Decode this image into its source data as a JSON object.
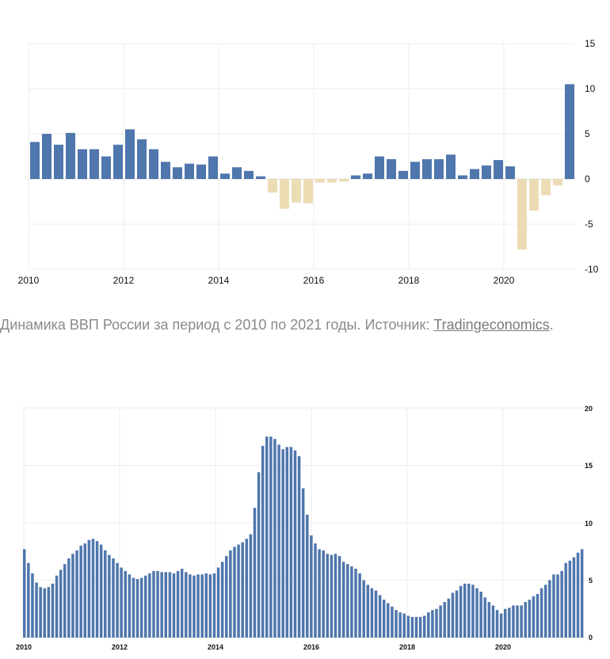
{
  "chart_data": [
    {
      "type": "bar",
      "title": "",
      "xlabel": "",
      "ylabel": "",
      "ylim": [
        -10,
        15
      ],
      "yticks": [
        "15",
        "10",
        "5",
        "0",
        "-5",
        "-10"
      ],
      "xtick_labels": [
        "2010",
        "2012",
        "2014",
        "2016",
        "2018",
        "2020"
      ],
      "positive_color": "#4f76ad",
      "negative_color": "#ecdcb3",
      "categories": [
        "2010 Q1",
        "2010 Q2",
        "2010 Q3",
        "2010 Q4",
        "2011 Q1",
        "2011 Q2",
        "2011 Q3",
        "2011 Q4",
        "2012 Q1",
        "2012 Q2",
        "2012 Q3",
        "2012 Q4",
        "2013 Q1",
        "2013 Q2",
        "2013 Q3",
        "2013 Q4",
        "2014 Q1",
        "2014 Q2",
        "2014 Q3",
        "2014 Q4",
        "2015 Q1",
        "2015 Q2",
        "2015 Q3",
        "2015 Q4",
        "2016 Q1",
        "2016 Q2",
        "2016 Q3",
        "2016 Q4",
        "2017 Q1",
        "2017 Q2",
        "2017 Q3",
        "2017 Q4",
        "2018 Q1",
        "2018 Q2",
        "2018 Q3",
        "2018 Q4",
        "2019 Q1",
        "2019 Q2",
        "2019 Q3",
        "2019 Q4",
        "2020 Q1",
        "2020 Q2",
        "2020 Q3",
        "2020 Q4",
        "2021 Q1",
        "2021 Q2"
      ],
      "values": [
        4.1,
        5.0,
        3.8,
        5.1,
        3.3,
        3.3,
        2.5,
        3.8,
        5.5,
        4.4,
        3.3,
        1.9,
        1.3,
        1.7,
        1.6,
        2.5,
        0.6,
        1.3,
        0.9,
        0.3,
        -1.5,
        -3.3,
        -2.6,
        -2.7,
        -0.4,
        -0.4,
        -0.3,
        0.4,
        0.6,
        2.5,
        2.2,
        0.9,
        1.9,
        2.2,
        2.2,
        2.7,
        0.4,
        1.1,
        1.5,
        2.1,
        1.4,
        -7.8,
        -3.5,
        -1.8,
        -0.7,
        10.5
      ]
    },
    {
      "type": "bar",
      "title": "",
      "xlabel": "",
      "ylabel": "",
      "ylim": [
        0,
        20
      ],
      "yticks": [
        "20",
        "15",
        "10",
        "5",
        "0"
      ],
      "xtick_labels": [
        "2010",
        "2012",
        "2014",
        "2016",
        "2018",
        "2020"
      ],
      "color": "#4f76ad",
      "start": "2010-01",
      "frequency": "monthly",
      "values": [
        7.7,
        6.5,
        5.6,
        4.8,
        4.4,
        4.3,
        4.4,
        4.7,
        5.4,
        5.9,
        6.4,
        6.9,
        7.3,
        7.6,
        8.0,
        8.2,
        8.5,
        8.6,
        8.4,
        8.1,
        7.6,
        7.2,
        6.9,
        6.5,
        6.1,
        5.8,
        5.5,
        5.2,
        5.1,
        5.2,
        5.4,
        5.6,
        5.8,
        5.8,
        5.7,
        5.7,
        5.7,
        5.6,
        5.8,
        6.0,
        5.7,
        5.5,
        5.4,
        5.5,
        5.5,
        5.6,
        5.5,
        5.6,
        6.1,
        6.6,
        7.1,
        7.6,
        7.9,
        8.1,
        8.3,
        8.6,
        9.0,
        11.3,
        14.4,
        16.7,
        17.5,
        17.5,
        17.3,
        16.8,
        16.4,
        16.6,
        16.6,
        16.3,
        15.8,
        13.0,
        10.7,
        8.9,
        8.2,
        7.7,
        7.6,
        7.3,
        7.2,
        7.3,
        7.1,
        6.6,
        6.4,
        6.2,
        6.0,
        5.6,
        5.0,
        4.6,
        4.3,
        4.1,
        3.7,
        3.3,
        3.0,
        2.7,
        2.4,
        2.2,
        2.1,
        1.9,
        1.8,
        1.8,
        1.8,
        1.9,
        2.2,
        2.4,
        2.5,
        2.8,
        3.1,
        3.4,
        3.9,
        4.1,
        4.5,
        4.7,
        4.7,
        4.6,
        4.3,
        4.0,
        3.5,
        3.1,
        2.8,
        2.4,
        2.1,
        2.5,
        2.6,
        2.8,
        2.8,
        2.8,
        3.1,
        3.3,
        3.6,
        3.8,
        4.3,
        4.6,
        5.0,
        5.5,
        5.5,
        5.8,
        6.5,
        6.7,
        7.0,
        7.4,
        7.7
      ]
    }
  ],
  "caption": {
    "text": "Динамика ВВП России за период с 2010 по 2021 годы. Источник:",
    "source_link": "Tradingeconomics",
    "end": "."
  }
}
